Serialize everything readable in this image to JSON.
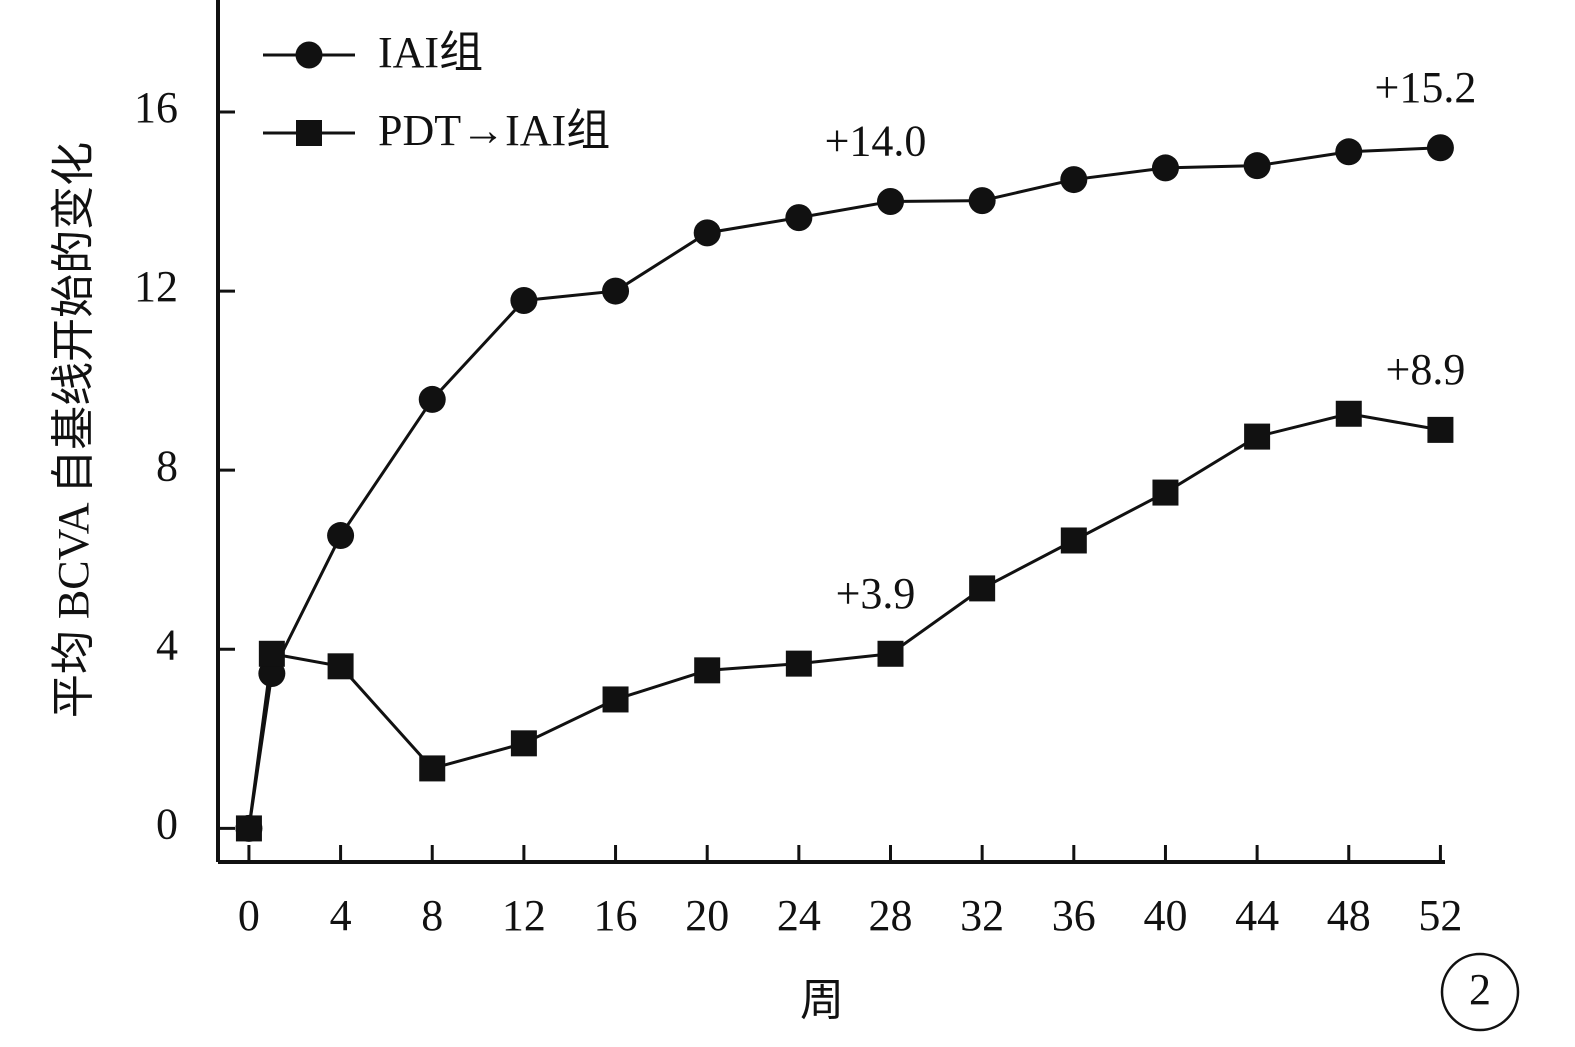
{
  "chart_data": {
    "type": "line",
    "y_label": "平均 BCVA 自基线开始的变化",
    "x_label": "周",
    "panel_label": "2",
    "x": [
      0,
      1,
      4,
      8,
      12,
      16,
      20,
      24,
      28,
      32,
      36,
      40,
      44,
      48,
      52
    ],
    "series": [
      {
        "name": "IAI组",
        "color": "#111111",
        "marker": "circle",
        "values": [
          0,
          3.46,
          6.54,
          9.58,
          11.79,
          12.0,
          13.3,
          13.64,
          14.0,
          14.02,
          14.49,
          14.75,
          14.8,
          15.11,
          15.2
        ],
        "value_labels": [
          null,
          null,
          null,
          null,
          null,
          null,
          null,
          null,
          "+14.0",
          null,
          null,
          null,
          null,
          null,
          "+15.2"
        ]
      },
      {
        "name": "PDT→IAI组",
        "color": "#111111",
        "marker": "square",
        "values": [
          0,
          3.9,
          3.62,
          1.34,
          1.9,
          2.88,
          3.53,
          3.68,
          3.9,
          5.36,
          6.43,
          7.5,
          8.75,
          9.26,
          8.9
        ],
        "value_labels": [
          null,
          null,
          null,
          null,
          null,
          null,
          null,
          null,
          "+3.9",
          null,
          null,
          null,
          null,
          null,
          "+8.9"
        ]
      }
    ],
    "xlim": [
      -1.35,
      52.2
    ],
    "xticks": [
      0,
      4,
      8,
      12,
      16,
      20,
      24,
      28,
      32,
      36,
      40,
      44,
      48,
      52
    ],
    "ylim": [
      -0.75,
      18.5
    ],
    "yticks": [
      0,
      4,
      8,
      12,
      16
    ],
    "grid": false,
    "legend": "upper left"
  }
}
